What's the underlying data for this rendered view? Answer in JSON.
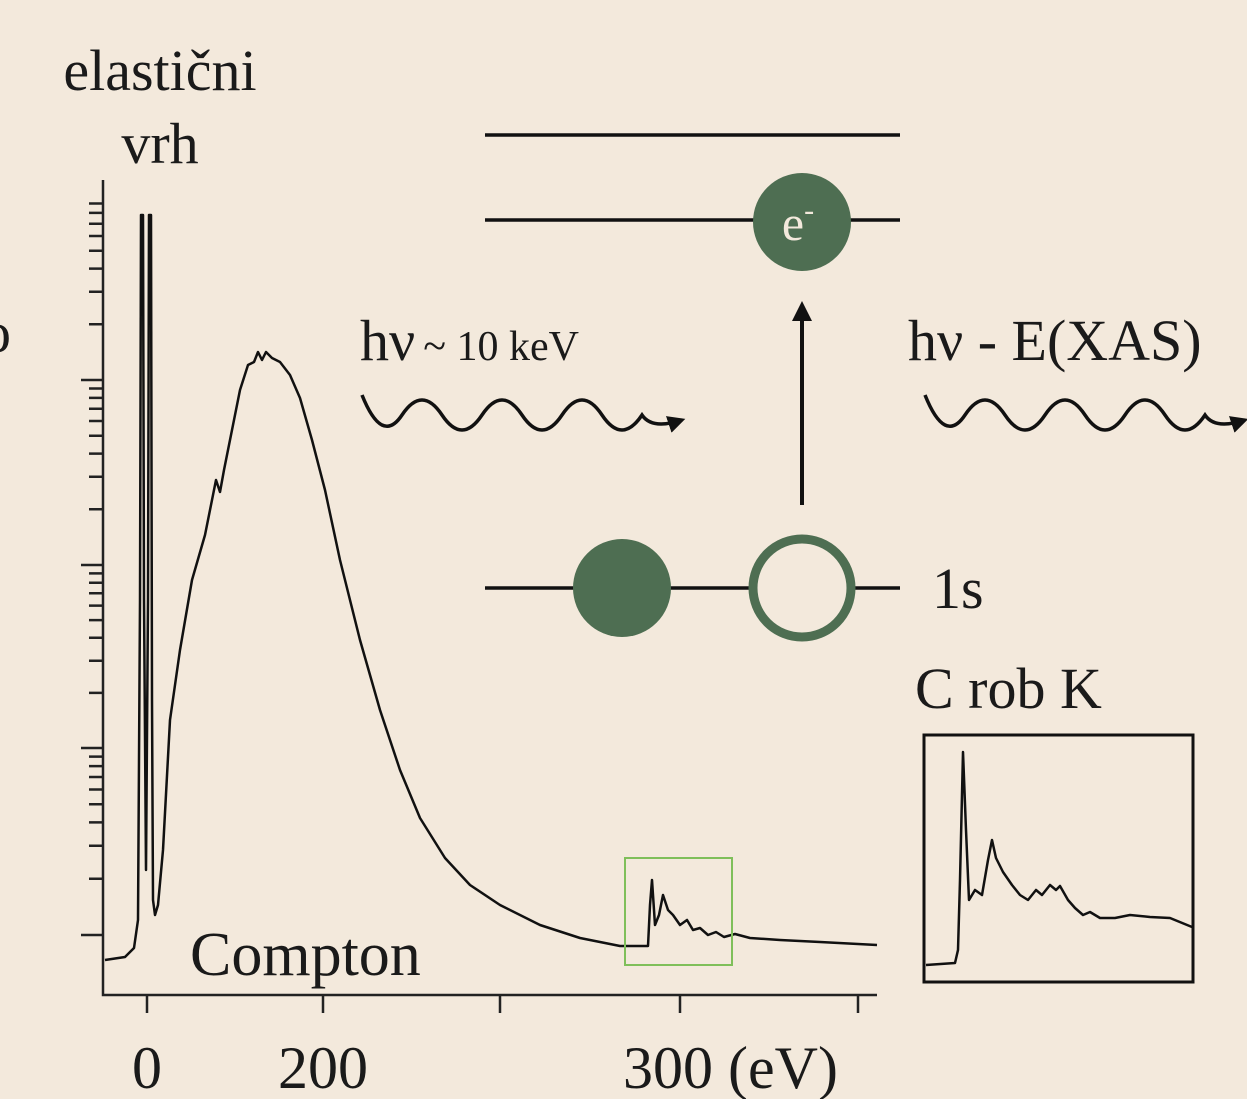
{
  "labels": {
    "elastic_line1": "elastični",
    "elastic_line2": "vrh",
    "cut_letter": "o",
    "incoming_hv": "hν",
    "incoming_energy": "~ 10 keV",
    "electron": "e",
    "electron_charge": "-",
    "outgoing": "hν - E(XAS)",
    "core_level": "1s",
    "edge": "C rob K",
    "compton": "Compton",
    "x_tick_0": "0",
    "x_tick_1": "200",
    "x_tick_2": "300 (eV)"
  }
}
